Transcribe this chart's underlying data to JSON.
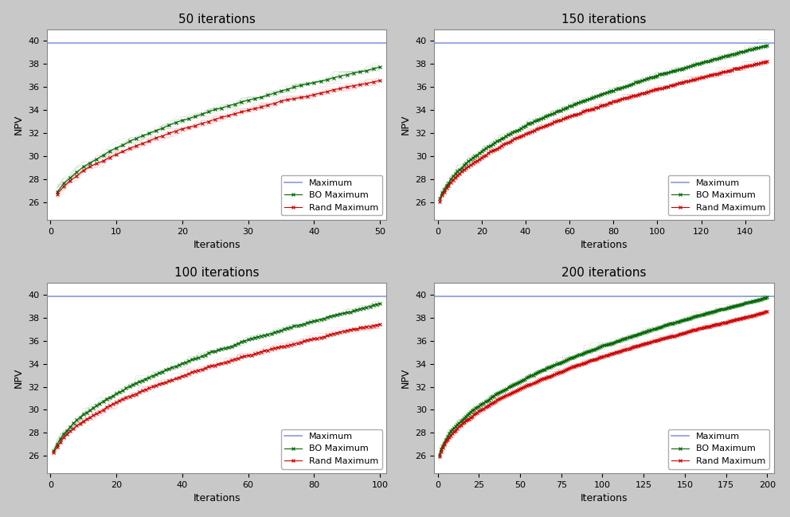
{
  "subplots": [
    {
      "title": "50 iterations",
      "n_iter": 50,
      "xticks": [
        0,
        10,
        20,
        30,
        40,
        50
      ]
    },
    {
      "title": "150 iterations",
      "n_iter": 150,
      "xticks": [
        0,
        20,
        40,
        60,
        80,
        100,
        120,
        140
      ]
    },
    {
      "title": "100 iterations",
      "n_iter": 100,
      "xticks": [
        0,
        20,
        40,
        60,
        80,
        100
      ]
    },
    {
      "title": "200 iterations",
      "n_iter": 200,
      "xticks": [
        0,
        25,
        50,
        75,
        100,
        125,
        150,
        175,
        200
      ]
    }
  ],
  "maximum_value": 39.85,
  "maximum_color": "#8899dd",
  "bo_color": "#006600",
  "rand_color": "#cc0000",
  "ylim_min": 24.5,
  "ylim_max": 41.0,
  "ylabel": "NPV",
  "xlabel": "Iterations",
  "bo_start": 25.1,
  "rand_start": 25.05,
  "bo_finals": [
    37.6,
    39.4,
    39.0,
    39.5
  ],
  "rand_finals": [
    36.4,
    37.9,
    37.2,
    38.1
  ],
  "bo_noise": 0.25,
  "rand_noise": 0.3,
  "legend_loc": "lower right",
  "plot_bg_color": "#ffffff",
  "figure_bg": "#c8c8c8",
  "title_fontsize": 11,
  "label_fontsize": 9,
  "tick_fontsize": 8,
  "marker_size": 3,
  "line_width": 0.8
}
